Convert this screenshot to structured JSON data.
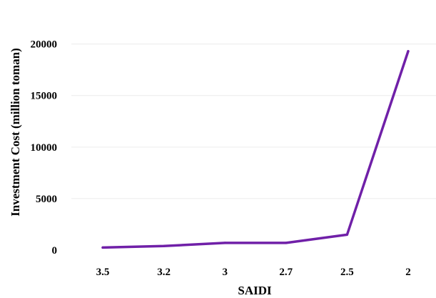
{
  "chart_data": {
    "type": "line",
    "title": "",
    "xlabel": "SAIDI",
    "ylabel": "Investment Cost (million toman)",
    "categories": [
      "3.5",
      "3.2",
      "3",
      "2.7",
      "2.5",
      "2"
    ],
    "series": [
      {
        "values": [
          250,
          400,
          700,
          700,
          1500,
          19300
        ]
      }
    ],
    "yticks": [
      "0",
      "5000",
      "10000",
      "15000",
      "20000"
    ],
    "ylim": [
      0,
      21500
    ],
    "grid": "horizontal",
    "legend": "none",
    "colors": {
      "series": "#7020a8",
      "grid": "#ececec"
    }
  }
}
